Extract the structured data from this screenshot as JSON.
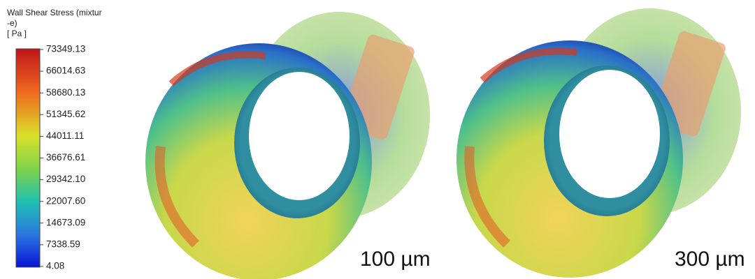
{
  "legend": {
    "title_lines": [
      "Wall Shear Stress (mixtur",
      "-e)",
      "[ Pa ]"
    ],
    "ticks": [
      "73349.13",
      "66014.63",
      "58680.13",
      "51345.62",
      "44011.11",
      "36676.61",
      "29342.10",
      "22007.60",
      "14673.09",
      "7338.59",
      "4.08"
    ]
  },
  "panels": [
    {
      "label": "100 µm"
    },
    {
      "label": "300 µm"
    }
  ]
}
